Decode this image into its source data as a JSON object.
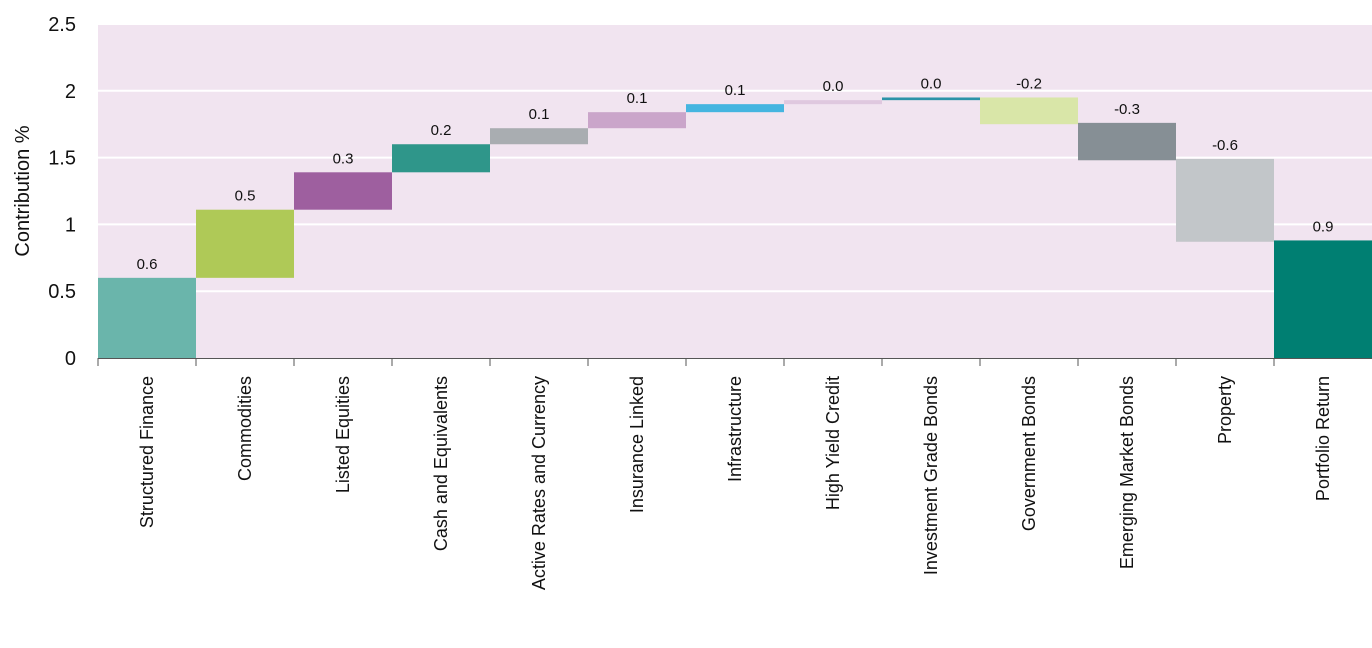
{
  "chart_data": {
    "type": "bar",
    "subtype": "waterfall",
    "ylabel": "Contribution %",
    "ylim": [
      0,
      2.5
    ],
    "yticks": [
      "0",
      "0.5",
      "1",
      "1.5",
      "2",
      "2.5"
    ],
    "ytick_values": [
      0,
      0.5,
      1,
      1.5,
      2,
      2.5
    ],
    "grid": true,
    "background_color": "#f1e4f0",
    "gridline_color": "#ffffff",
    "categories": [
      "Structured Finance",
      "Commodities",
      "Listed Equities",
      "Cash and Equivalents",
      "Active Rates and Currency",
      "Insurance Linked",
      "Infrastructure",
      "High Yield Credit",
      "Investment Grade Bonds",
      "Government Bonds",
      "Emerging Market Bonds",
      "Property",
      "Portfolio Return"
    ],
    "bars": [
      {
        "start": 0.0,
        "end": 0.6,
        "label": "0.6",
        "color": "#6ab5ab"
      },
      {
        "start": 0.6,
        "end": 1.11,
        "label": "0.5",
        "color": "#afc957"
      },
      {
        "start": 1.11,
        "end": 1.39,
        "label": "0.3",
        "color": "#9e5f9f"
      },
      {
        "start": 1.39,
        "end": 1.6,
        "label": "0.2",
        "color": "#2f968a"
      },
      {
        "start": 1.6,
        "end": 1.72,
        "label": "0.1",
        "color": "#a9adb1"
      },
      {
        "start": 1.72,
        "end": 1.84,
        "label": "0.1",
        "color": "#caa5ca"
      },
      {
        "start": 1.84,
        "end": 1.9,
        "label": "0.1",
        "color": "#45b5e0"
      },
      {
        "start": 1.9,
        "end": 1.93,
        "label": "0.0",
        "color": "#dfc8df"
      },
      {
        "start": 1.93,
        "end": 1.95,
        "label": "0.0",
        "color": "#2c93a8"
      },
      {
        "start": 1.95,
        "end": 1.75,
        "label": "-0.2",
        "color": "#d9e6a8"
      },
      {
        "start": 1.76,
        "end": 1.48,
        "label": "-0.3",
        "color": "#868f95"
      },
      {
        "start": 1.49,
        "end": 0.87,
        "label": "-0.6",
        "color": "#c2c6c9"
      },
      {
        "start": 0.0,
        "end": 0.88,
        "label": "0.9",
        "color": "#007f72"
      }
    ]
  }
}
